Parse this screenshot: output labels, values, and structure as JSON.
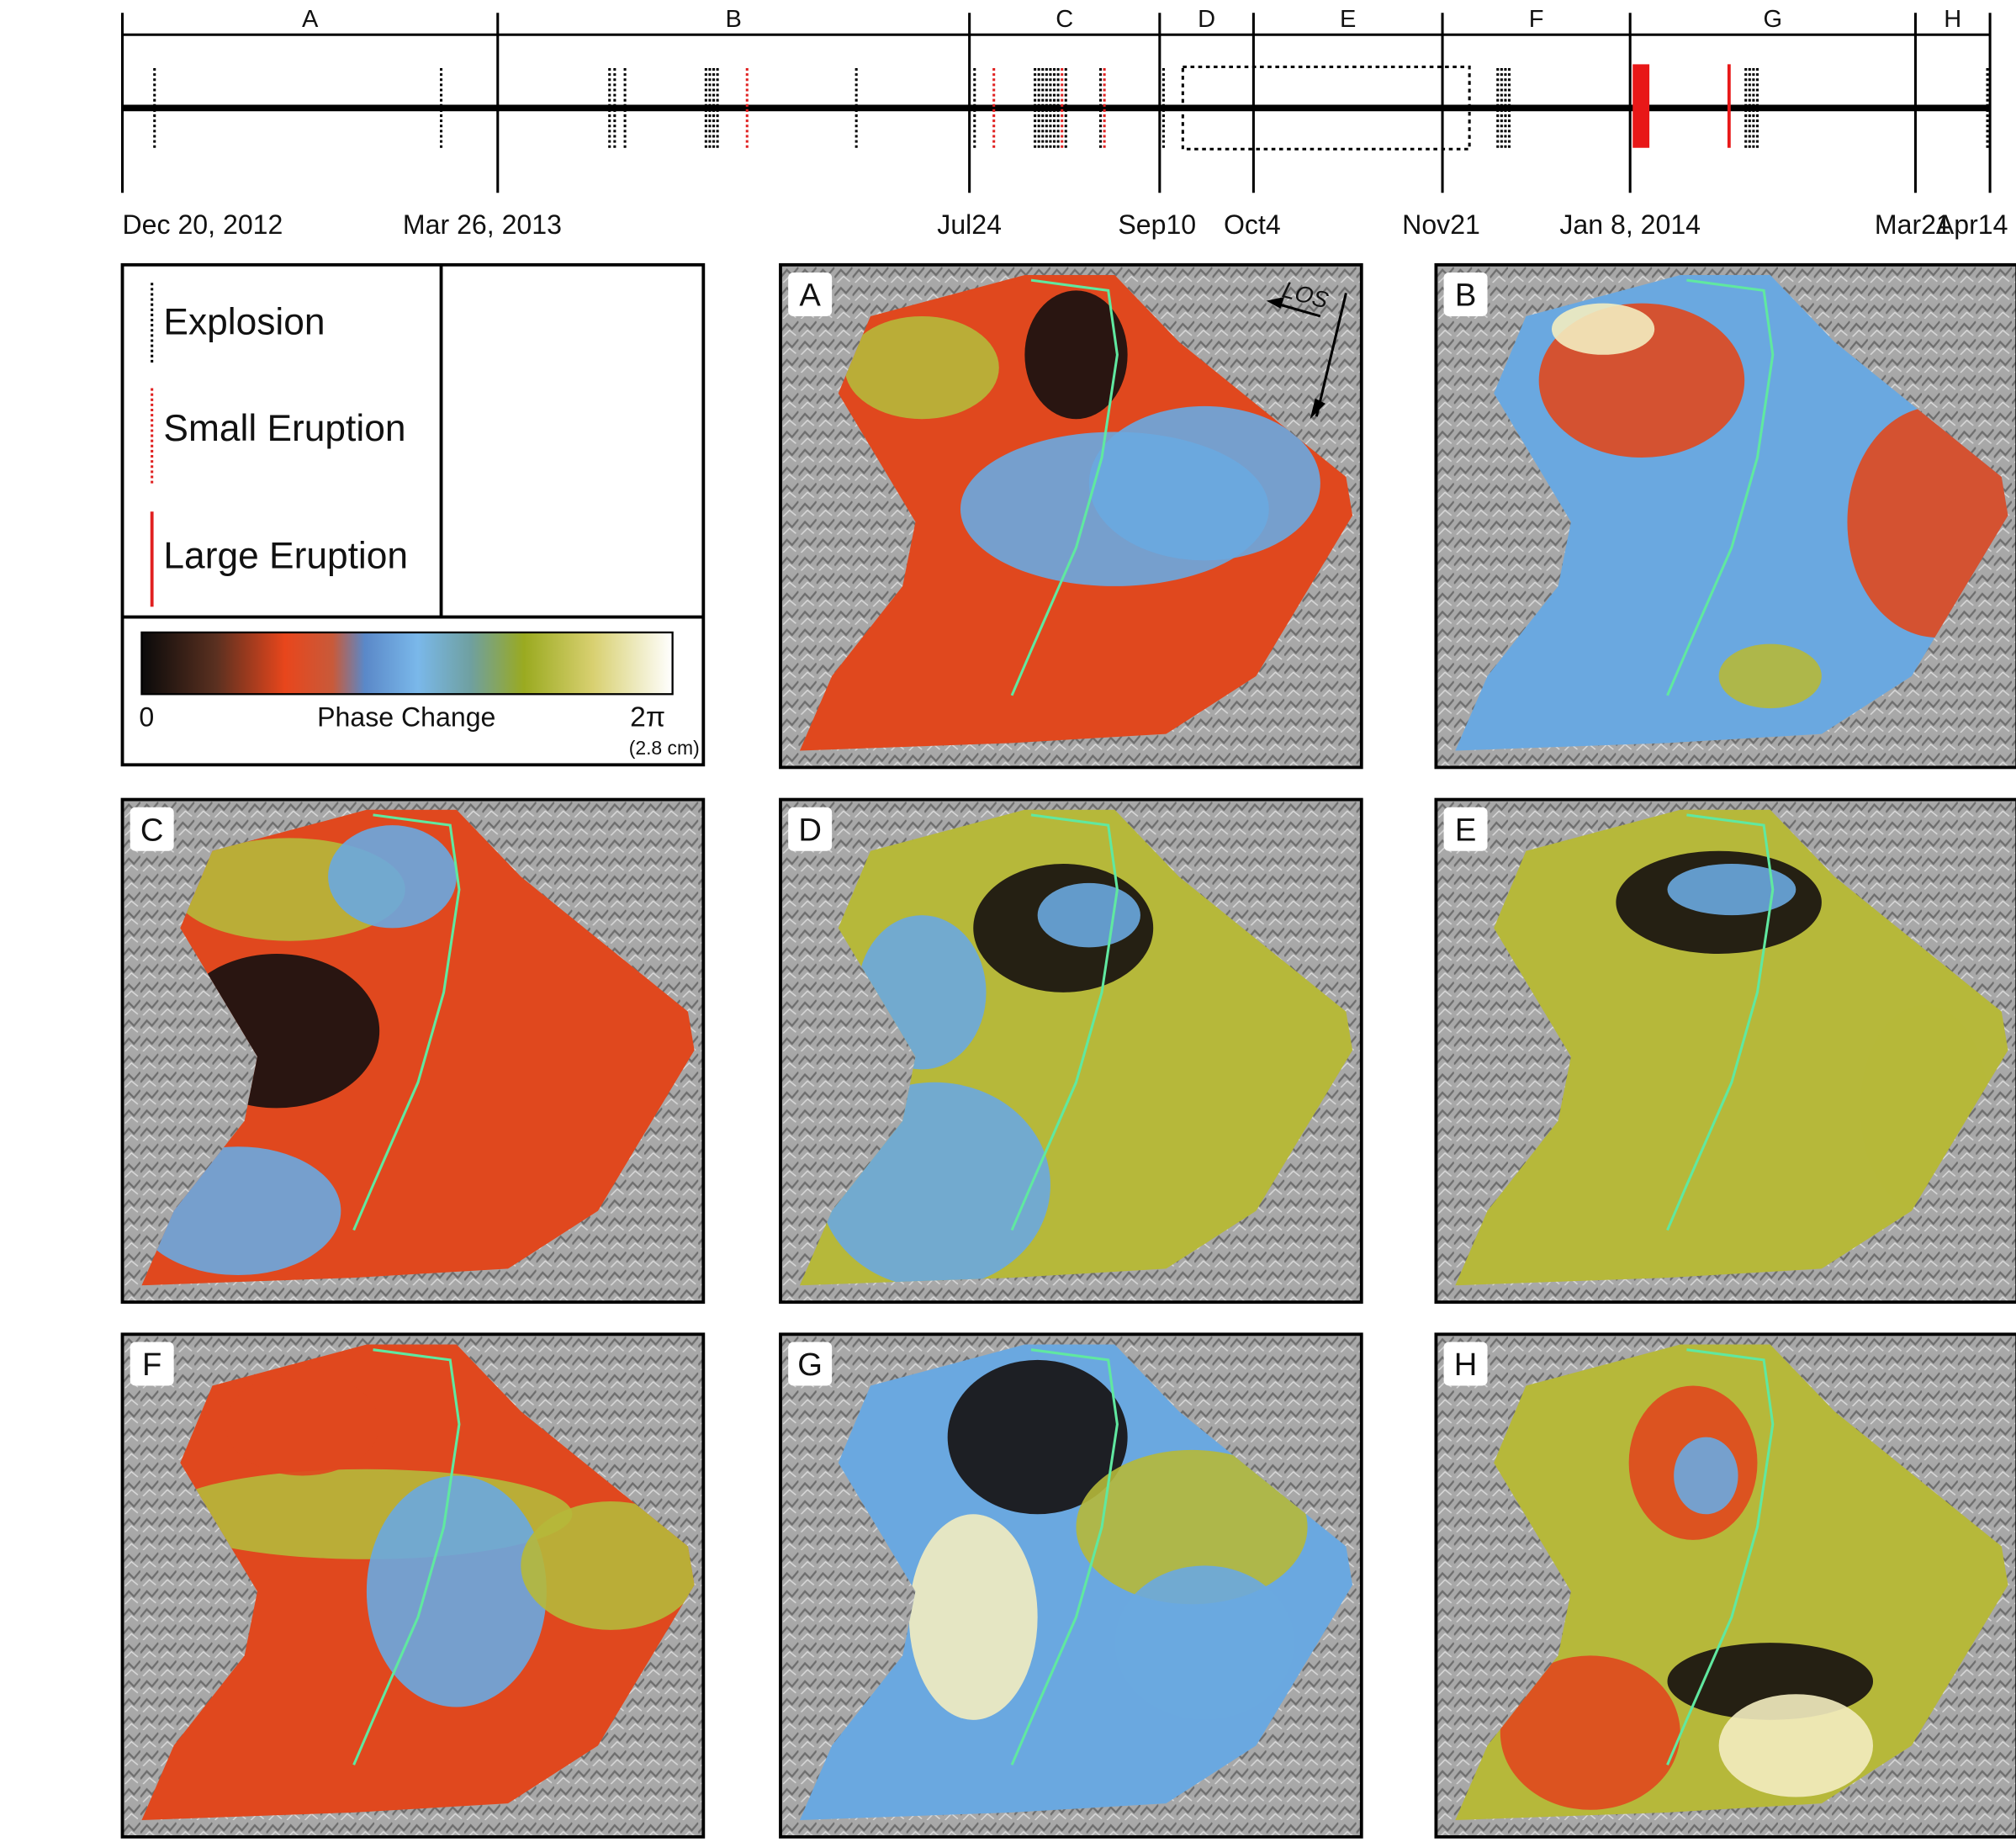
{
  "timeline": {
    "periods": [
      "A",
      "B",
      "C",
      "D",
      "E",
      "F",
      "G",
      "H"
    ],
    "dates": [
      "Dec 20, 2012",
      "Mar 26, 2013",
      "Jul24",
      "Sep10",
      "Oct4",
      "Nov21",
      "Jan 8, 2014",
      "Mar21",
      "Apr14"
    ]
  },
  "legend": {
    "items": [
      "Explosion",
      "Small Eruption",
      "Large Eruption"
    ],
    "colorbar": {
      "min_label": "0",
      "title": "Phase Change",
      "max_label": "2π",
      "unit": "(2.8 cm)"
    }
  },
  "panels": [
    {
      "label": "A",
      "annotation": "LOS"
    },
    {
      "label": "B"
    },
    {
      "label": "C"
    },
    {
      "label": "D"
    },
    {
      "label": "E"
    },
    {
      "label": "F"
    },
    {
      "label": "G"
    },
    {
      "label": "H"
    }
  ]
}
